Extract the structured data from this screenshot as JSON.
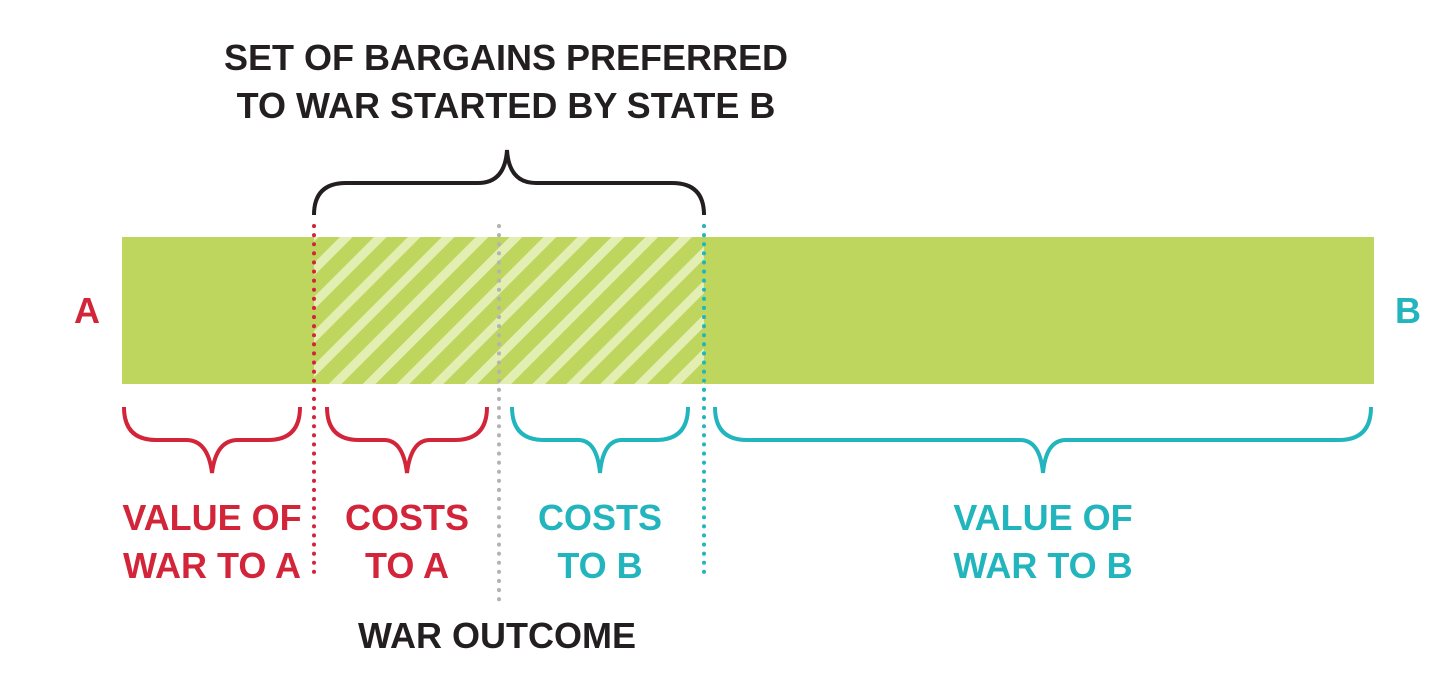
{
  "title": {
    "line1": "SET OF BARGAINS PREFERRED",
    "line2": "TO WAR STARTED BY STATE B"
  },
  "endpoints": {
    "left": "A",
    "right": "B"
  },
  "segments": {
    "value_a": {
      "line1": "VALUE OF",
      "line2": "WAR TO A"
    },
    "costs_a": {
      "line1": "COSTS",
      "line2": "TO A"
    },
    "costs_b": {
      "line1": "COSTS",
      "line2": "TO B"
    },
    "value_b": {
      "line1": "VALUE OF",
      "line2": "WAR TO B"
    }
  },
  "war_outcome": "WAR OUTCOME",
  "colors": {
    "bar": "#bed55e",
    "hatch": "#e3eeb3",
    "state_a": "#d3253a",
    "state_b": "#22b5bd",
    "outcome_line": "#b3b3b3",
    "text_dark": "#231f20"
  }
}
